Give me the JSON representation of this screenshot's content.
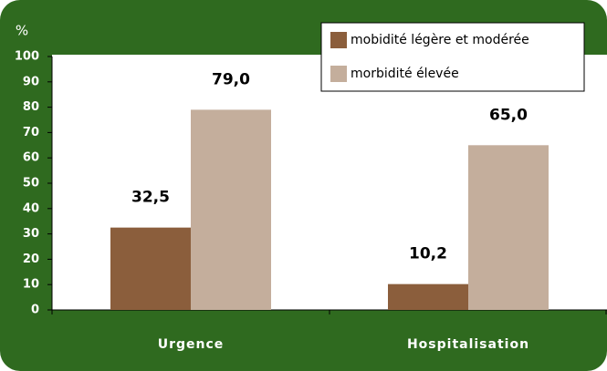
{
  "chart_data": {
    "type": "bar",
    "y_label": "%",
    "categories": [
      "Urgence",
      "Hospitalisation"
    ],
    "series": [
      {
        "name": "mobidité légère et modérée",
        "color": "#8b5e3c",
        "values": [
          32.5,
          10.2
        ],
        "value_labels": [
          "32,5",
          "10,2"
        ]
      },
      {
        "name": "morbidité élevée",
        "color": "#c4ae9c",
        "values": [
          79.0,
          65.0
        ],
        "value_labels": [
          "79,0",
          "65,0"
        ]
      }
    ],
    "ylim": [
      0,
      100
    ],
    "yticks": [
      0,
      10,
      20,
      30,
      40,
      50,
      60,
      70,
      80,
      90,
      100
    ],
    "legend": "top-right"
  }
}
